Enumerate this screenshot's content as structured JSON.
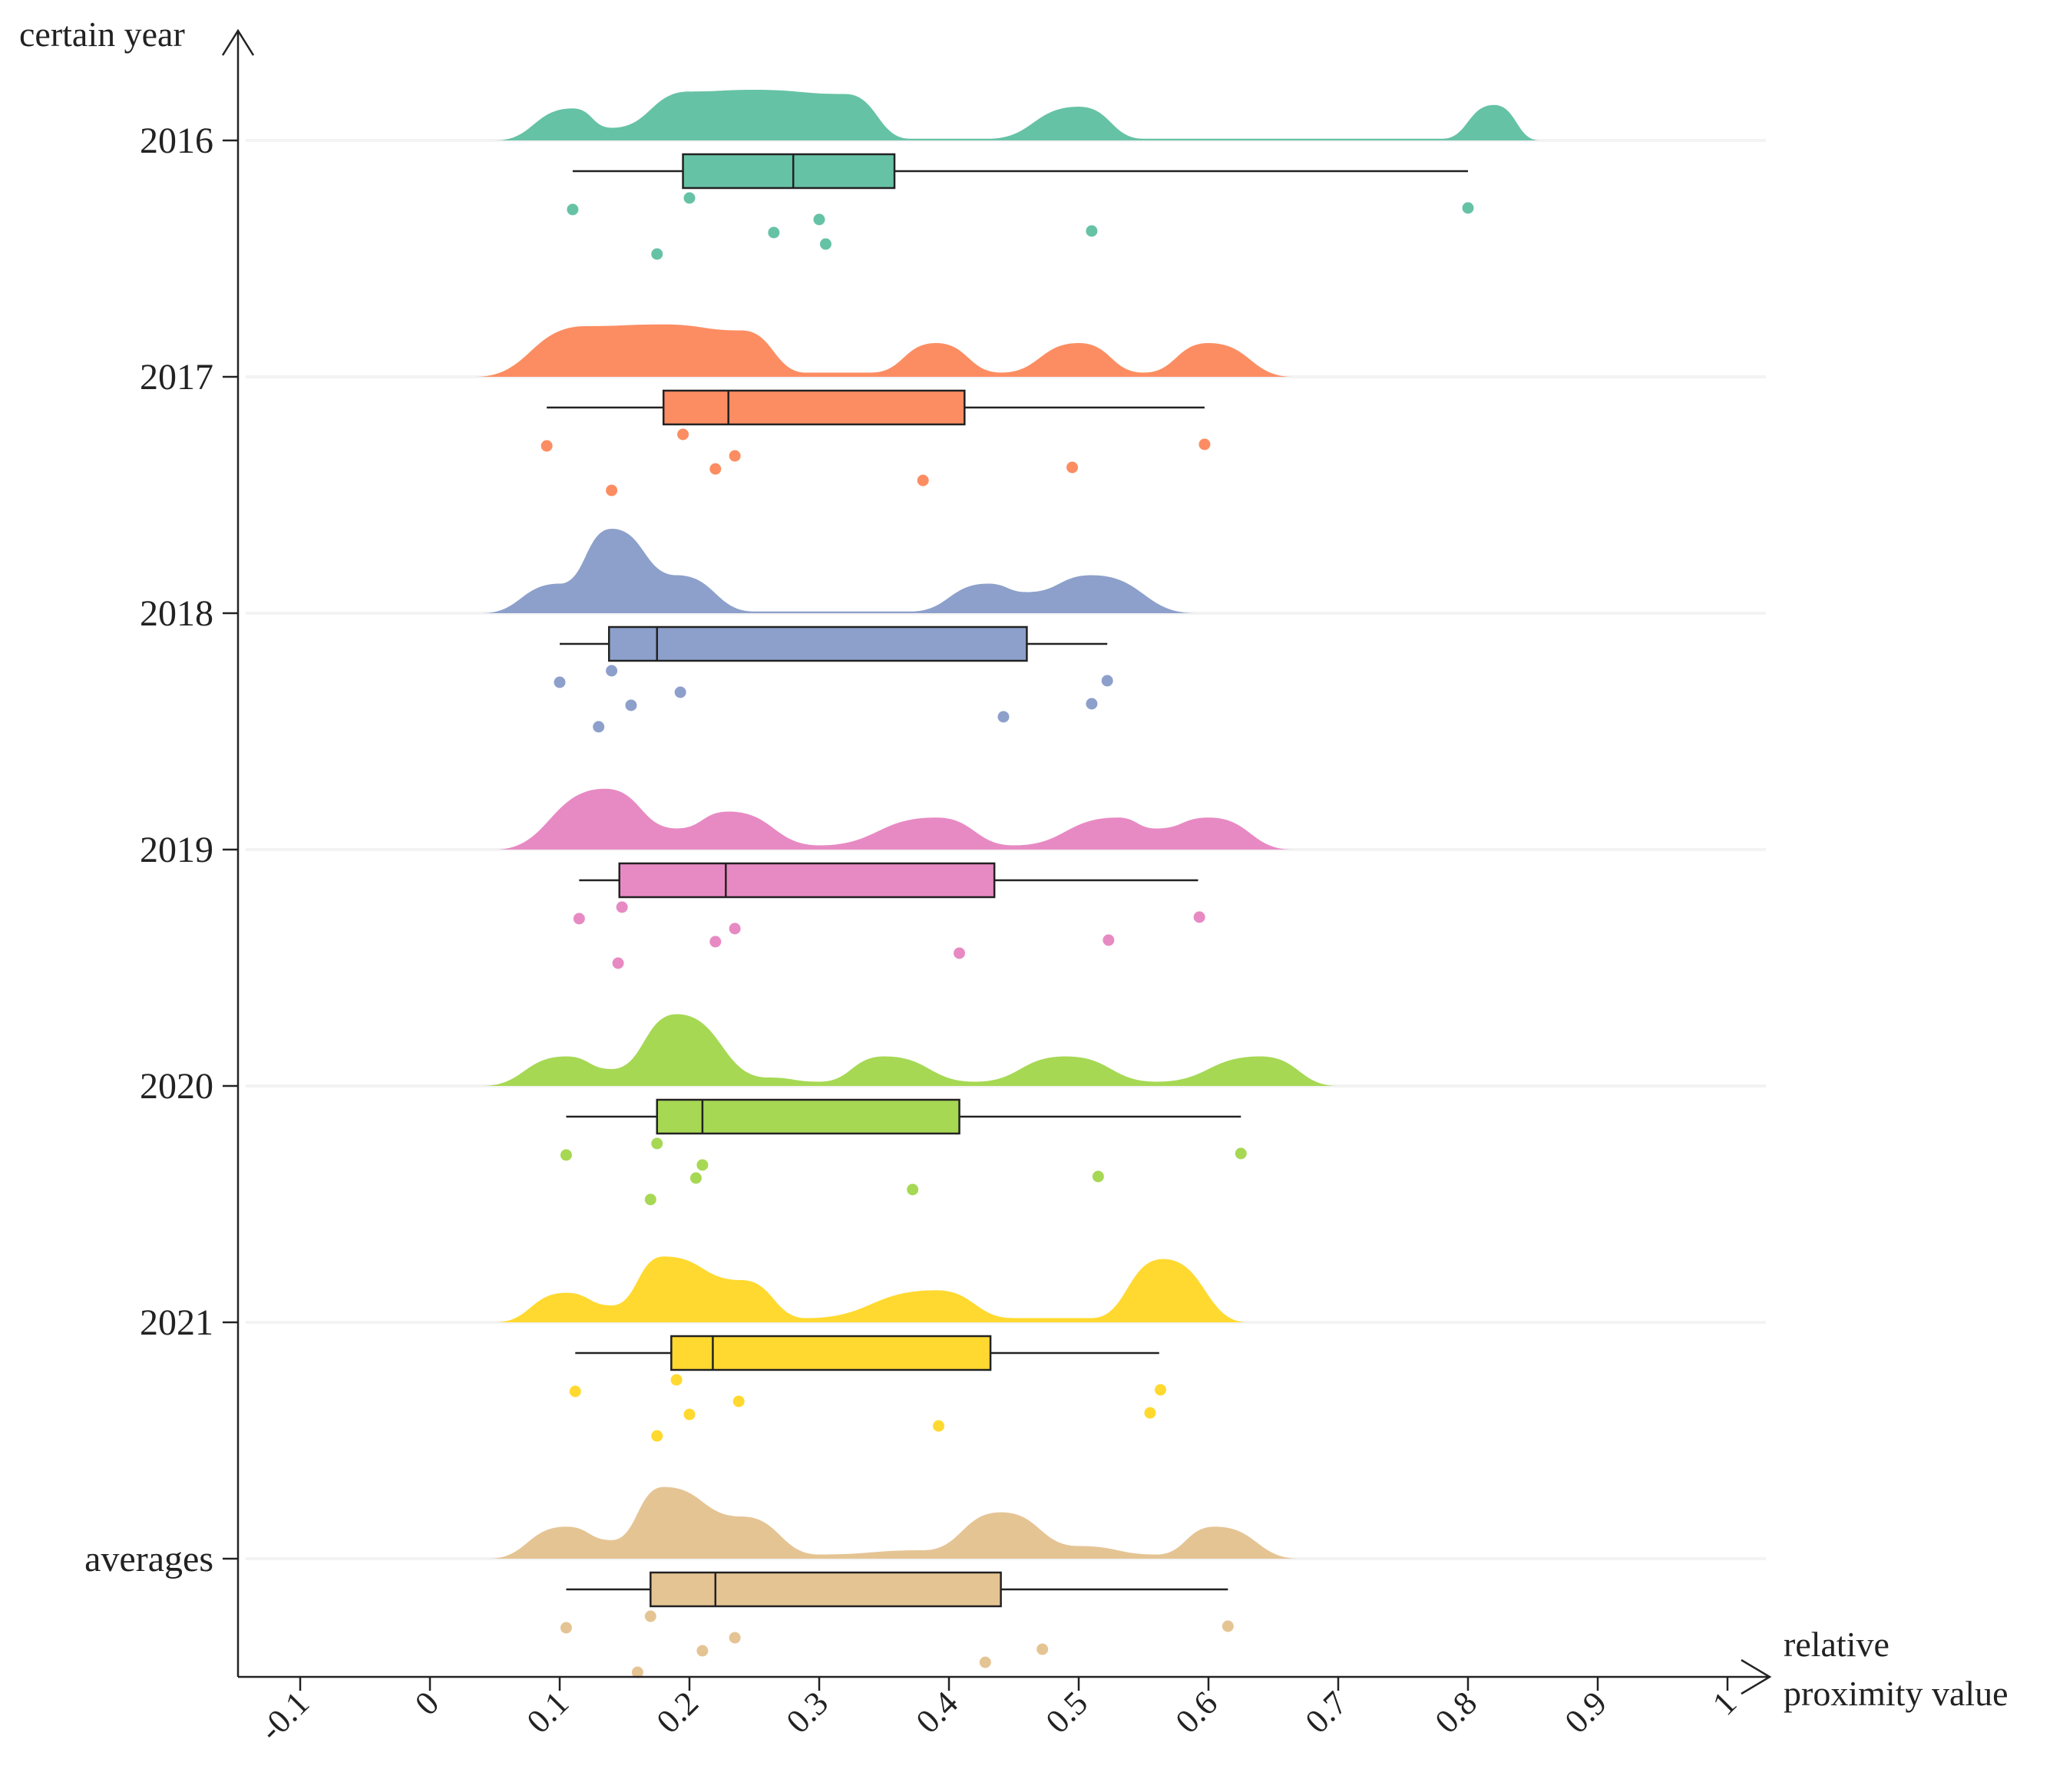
{
  "chart_data": {
    "type": "raincloud",
    "ylabel": "certain year",
    "xlabel_lines": [
      "relative",
      "proximity value"
    ],
    "xlim": [
      -0.15,
      1.02
    ],
    "xticks": [
      -0.1,
      0,
      0.1,
      0.2,
      0.3,
      0.4,
      0.5,
      0.6,
      0.7,
      0.8,
      0.9,
      1
    ],
    "xtick_labels": [
      "-0.1",
      "0",
      "0.1",
      "0.2",
      "0.3",
      "0.4",
      "0.5",
      "0.6",
      "0.7",
      "0.8",
      "0.9",
      "1"
    ],
    "grid": false,
    "series": [
      {
        "name": "2016",
        "color": "#66c2a5",
        "box": {
          "min": 0.11,
          "q1": 0.195,
          "median": 0.28,
          "q3": 0.358,
          "max": 0.8
        },
        "density_peaks": [
          {
            "x": 0.05,
            "h": 0.0
          },
          {
            "x": 0.11,
            "h": 0.38
          },
          {
            "x": 0.14,
            "h": 0.15
          },
          {
            "x": 0.2,
            "h": 0.58
          },
          {
            "x": 0.25,
            "h": 0.6
          },
          {
            "x": 0.32,
            "h": 0.55
          },
          {
            "x": 0.37,
            "h": 0.02
          },
          {
            "x": 0.43,
            "h": 0.02
          },
          {
            "x": 0.5,
            "h": 0.4
          },
          {
            "x": 0.55,
            "h": 0.02
          },
          {
            "x": 0.78,
            "h": 0.02
          },
          {
            "x": 0.82,
            "h": 0.42
          },
          {
            "x": 0.855,
            "h": 0.0
          }
        ],
        "points": [
          0.11,
          0.175,
          0.2,
          0.265,
          0.3,
          0.305,
          0.51,
          0.8
        ]
      },
      {
        "name": "2017",
        "color": "#fc8d62",
        "box": {
          "min": 0.09,
          "q1": 0.18,
          "median": 0.23,
          "q3": 0.412,
          "max": 0.597
        },
        "density_peaks": [
          {
            "x": 0.035,
            "h": 0.0
          },
          {
            "x": 0.12,
            "h": 0.6
          },
          {
            "x": 0.18,
            "h": 0.62
          },
          {
            "x": 0.24,
            "h": 0.55
          },
          {
            "x": 0.29,
            "h": 0.05
          },
          {
            "x": 0.34,
            "h": 0.05
          },
          {
            "x": 0.39,
            "h": 0.4
          },
          {
            "x": 0.44,
            "h": 0.05
          },
          {
            "x": 0.5,
            "h": 0.4
          },
          {
            "x": 0.55,
            "h": 0.05
          },
          {
            "x": 0.6,
            "h": 0.4
          },
          {
            "x": 0.665,
            "h": 0.0
          }
        ],
        "points": [
          0.09,
          0.14,
          0.195,
          0.22,
          0.235,
          0.38,
          0.495,
          0.597
        ]
      },
      {
        "name": "2018",
        "color": "#8da0cb",
        "box": {
          "min": 0.1,
          "q1": 0.138,
          "median": 0.175,
          "q3": 0.46,
          "max": 0.522
        },
        "density_peaks": [
          {
            "x": 0.04,
            "h": 0.0
          },
          {
            "x": 0.1,
            "h": 0.35
          },
          {
            "x": 0.14,
            "h": 1.0
          },
          {
            "x": 0.19,
            "h": 0.45
          },
          {
            "x": 0.25,
            "h": 0.02
          },
          {
            "x": 0.37,
            "h": 0.02
          },
          {
            "x": 0.43,
            "h": 0.35
          },
          {
            "x": 0.46,
            "h": 0.25
          },
          {
            "x": 0.51,
            "h": 0.45
          },
          {
            "x": 0.59,
            "h": 0.0
          }
        ],
        "points": [
          0.1,
          0.13,
          0.14,
          0.155,
          0.193,
          0.442,
          0.51,
          0.522
        ]
      },
      {
        "name": "2019",
        "color": "#e78ac3",
        "box": {
          "min": 0.115,
          "q1": 0.146,
          "median": 0.228,
          "q3": 0.435,
          "max": 0.592
        },
        "density_peaks": [
          {
            "x": 0.05,
            "h": 0.0
          },
          {
            "x": 0.135,
            "h": 0.72
          },
          {
            "x": 0.19,
            "h": 0.25
          },
          {
            "x": 0.23,
            "h": 0.45
          },
          {
            "x": 0.3,
            "h": 0.05
          },
          {
            "x": 0.39,
            "h": 0.38
          },
          {
            "x": 0.45,
            "h": 0.05
          },
          {
            "x": 0.53,
            "h": 0.38
          },
          {
            "x": 0.56,
            "h": 0.25
          },
          {
            "x": 0.6,
            "h": 0.38
          },
          {
            "x": 0.665,
            "h": 0.0
          }
        ],
        "points": [
          0.115,
          0.145,
          0.148,
          0.22,
          0.235,
          0.408,
          0.523,
          0.593
        ]
      },
      {
        "name": "2020",
        "color": "#a6d854",
        "box": {
          "min": 0.105,
          "q1": 0.175,
          "median": 0.21,
          "q3": 0.408,
          "max": 0.625
        },
        "density_peaks": [
          {
            "x": 0.04,
            "h": 0.0
          },
          {
            "x": 0.105,
            "h": 0.35
          },
          {
            "x": 0.14,
            "h": 0.2
          },
          {
            "x": 0.19,
            "h": 0.85
          },
          {
            "x": 0.26,
            "h": 0.1
          },
          {
            "x": 0.3,
            "h": 0.05
          },
          {
            "x": 0.35,
            "h": 0.35
          },
          {
            "x": 0.42,
            "h": 0.05
          },
          {
            "x": 0.49,
            "h": 0.35
          },
          {
            "x": 0.56,
            "h": 0.05
          },
          {
            "x": 0.64,
            "h": 0.35
          },
          {
            "x": 0.7,
            "h": 0.0
          }
        ],
        "points": [
          0.105,
          0.17,
          0.175,
          0.205,
          0.21,
          0.372,
          0.515,
          0.625
        ]
      },
      {
        "name": "2021",
        "color": "#ffd92f",
        "box": {
          "min": 0.112,
          "q1": 0.186,
          "median": 0.218,
          "q3": 0.432,
          "max": 0.562
        },
        "density_peaks": [
          {
            "x": 0.05,
            "h": 0.0
          },
          {
            "x": 0.105,
            "h": 0.35
          },
          {
            "x": 0.14,
            "h": 0.2
          },
          {
            "x": 0.18,
            "h": 0.78
          },
          {
            "x": 0.24,
            "h": 0.5
          },
          {
            "x": 0.29,
            "h": 0.05
          },
          {
            "x": 0.39,
            "h": 0.38
          },
          {
            "x": 0.45,
            "h": 0.05
          },
          {
            "x": 0.51,
            "h": 0.05
          },
          {
            "x": 0.565,
            "h": 0.75
          },
          {
            "x": 0.63,
            "h": 0.0
          }
        ],
        "points": [
          0.112,
          0.175,
          0.19,
          0.2,
          0.238,
          0.392,
          0.555,
          0.563
        ]
      },
      {
        "name": "averages",
        "color": "#e5c494",
        "box": {
          "min": 0.105,
          "q1": 0.17,
          "median": 0.22,
          "q3": 0.44,
          "max": 0.615
        },
        "density_peaks": [
          {
            "x": 0.045,
            "h": 0.0
          },
          {
            "x": 0.105,
            "h": 0.38
          },
          {
            "x": 0.14,
            "h": 0.22
          },
          {
            "x": 0.18,
            "h": 0.85
          },
          {
            "x": 0.24,
            "h": 0.5
          },
          {
            "x": 0.3,
            "h": 0.05
          },
          {
            "x": 0.38,
            "h": 0.1
          },
          {
            "x": 0.44,
            "h": 0.55
          },
          {
            "x": 0.5,
            "h": 0.15
          },
          {
            "x": 0.56,
            "h": 0.05
          },
          {
            "x": 0.605,
            "h": 0.38
          },
          {
            "x": 0.67,
            "h": 0.0
          }
        ],
        "points": [
          0.105,
          0.16,
          0.17,
          0.21,
          0.235,
          0.428,
          0.472,
          0.615
        ]
      }
    ]
  }
}
